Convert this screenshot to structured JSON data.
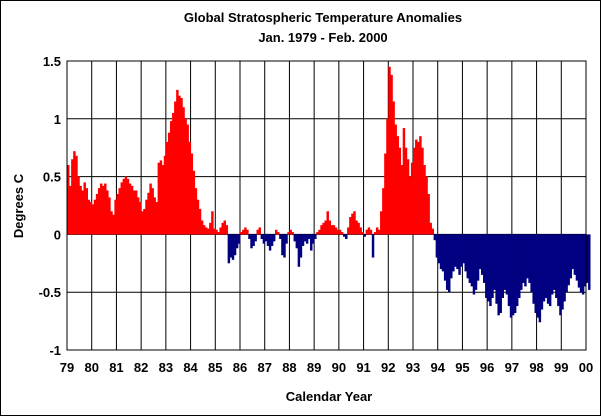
{
  "chart_data": {
    "type": "bar",
    "title": "Global  Stratospheric Temperature Anomalies",
    "subtitle": "Jan. 1979 -  Feb. 2000",
    "xlabel": "Calendar Year",
    "ylabel": "Degrees C",
    "ylim": [
      -1,
      1.5
    ],
    "yticks": [
      "1.5",
      "1",
      "0.5",
      "0",
      "-0.5",
      "-1"
    ],
    "ytick_values": [
      1.5,
      1,
      0.5,
      0,
      -0.5,
      -1
    ],
    "xticks": [
      "79",
      "80",
      "81",
      "82",
      "83",
      "84",
      "85",
      "86",
      "87",
      "88",
      "89",
      "90",
      "91",
      "92",
      "93",
      "94",
      "95",
      "96",
      "97",
      "98",
      "99",
      "00"
    ],
    "grid": true,
    "colors": {
      "positive": "#ff0000",
      "negative": "#000080"
    },
    "start": "1979-01",
    "end": "2000-02",
    "series": [
      {
        "year": 1979,
        "values": [
          0.6,
          0.42,
          0.65,
          0.72,
          0.68,
          0.5,
          0.42,
          0.38,
          0.45,
          0.4,
          0.3,
          0.28
        ]
      },
      {
        "year": 1980,
        "values": [
          0.26,
          0.3,
          0.35,
          0.4,
          0.44,
          0.42,
          0.44,
          0.38,
          0.32,
          0.2,
          0.17,
          0.3
        ]
      },
      {
        "year": 1981,
        "values": [
          0.35,
          0.4,
          0.45,
          0.48,
          0.5,
          0.48,
          0.44,
          0.42,
          0.38,
          0.38,
          0.32,
          0.28
        ]
      },
      {
        "year": 1982,
        "values": [
          0.2,
          0.22,
          0.3,
          0.36,
          0.44,
          0.4,
          0.32,
          0.28,
          0.62,
          0.64,
          0.6,
          0.68
        ]
      },
      {
        "year": 1983,
        "values": [
          0.8,
          0.88,
          0.98,
          1.05,
          1.15,
          1.25,
          1.2,
          1.18,
          1.1,
          1.0,
          0.95,
          0.8
        ]
      },
      {
        "year": 1984,
        "values": [
          0.7,
          0.55,
          0.4,
          0.3,
          0.22,
          0.12,
          0.08,
          0.06,
          0.05,
          0.1,
          0.2,
          0.05
        ]
      },
      {
        "year": 1985,
        "values": [
          0.04,
          0.02,
          0.06,
          0.1,
          0.12,
          0.08,
          -0.25,
          -0.2,
          -0.22,
          -0.18,
          -0.12,
          -0.08
        ]
      },
      {
        "year": 1986,
        "values": [
          0.02,
          0.04,
          0.06,
          0.04,
          -0.04,
          -0.12,
          -0.1,
          -0.06,
          0.04,
          0.06,
          -0.04,
          -0.08
        ]
      },
      {
        "year": 1987,
        "values": [
          -0.06,
          -0.1,
          -0.14,
          -0.1,
          -0.06,
          0.04,
          0.02,
          -0.04,
          -0.18,
          -0.2,
          -0.08,
          0.02
        ]
      },
      {
        "year": 1988,
        "values": [
          0.04,
          0.02,
          -0.06,
          -0.12,
          -0.28,
          -0.2,
          -0.1,
          -0.06,
          -0.08,
          -0.04,
          -0.14,
          -0.08
        ]
      },
      {
        "year": 1989,
        "values": [
          -0.04,
          0.02,
          0.04,
          0.08,
          0.1,
          0.12,
          0.2,
          0.12,
          0.08,
          0.08,
          0.06,
          0.04
        ]
      },
      {
        "year": 1990,
        "values": [
          0.04,
          0.02,
          -0.02,
          -0.04,
          0.06,
          0.15,
          0.18,
          0.2,
          0.12,
          0.1,
          0.06,
          0.02
        ]
      },
      {
        "year": 1991,
        "values": [
          -0.02,
          0.04,
          0.06,
          0.04,
          -0.2,
          0.02,
          0.06,
          0.04,
          0.2,
          0.4,
          0.7,
          1.0
        ]
      },
      {
        "year": 1992,
        "values": [
          1.45,
          1.38,
          1.15,
          0.95,
          0.85,
          0.75,
          0.6,
          0.92,
          0.75,
          0.65,
          0.5,
          0.62
        ]
      },
      {
        "year": 1993,
        "values": [
          0.75,
          0.82,
          0.8,
          0.85,
          0.75,
          0.6,
          0.5,
          0.35,
          0.1,
          0.05,
          -0.05,
          -0.2
        ]
      },
      {
        "year": 1994,
        "values": [
          -0.25,
          -0.3,
          -0.32,
          -0.4,
          -0.48,
          -0.5,
          -0.38,
          -0.32,
          -0.28,
          -0.3,
          -0.35,
          -0.28
        ]
      },
      {
        "year": 1995,
        "values": [
          -0.25,
          -0.32,
          -0.38,
          -0.42,
          -0.45,
          -0.52,
          -0.48,
          -0.4,
          -0.3,
          -0.35,
          -0.42,
          -0.55
        ]
      },
      {
        "year": 1996,
        "values": [
          -0.58,
          -0.62,
          -0.55,
          -0.48,
          -0.6,
          -0.7,
          -0.68,
          -0.55,
          -0.48,
          -0.52,
          -0.62,
          -0.72
        ]
      },
      {
        "year": 1997,
        "values": [
          -0.7,
          -0.68,
          -0.62,
          -0.55,
          -0.48,
          -0.42,
          -0.45,
          -0.38,
          -0.42,
          -0.5,
          -0.6,
          -0.68
        ]
      },
      {
        "year": 1998,
        "values": [
          -0.72,
          -0.76,
          -0.65,
          -0.58,
          -0.55,
          -0.6,
          -0.62,
          -0.52,
          -0.48,
          -0.55,
          -0.62,
          -0.7
        ]
      },
      {
        "year": 1999,
        "values": [
          -0.65,
          -0.58,
          -0.5,
          -0.44,
          -0.38,
          -0.3,
          -0.35,
          -0.4,
          -0.46,
          -0.5,
          -0.52,
          -0.45
        ]
      },
      {
        "year": 2000,
        "values": [
          -0.42,
          -0.48
        ]
      }
    ]
  }
}
